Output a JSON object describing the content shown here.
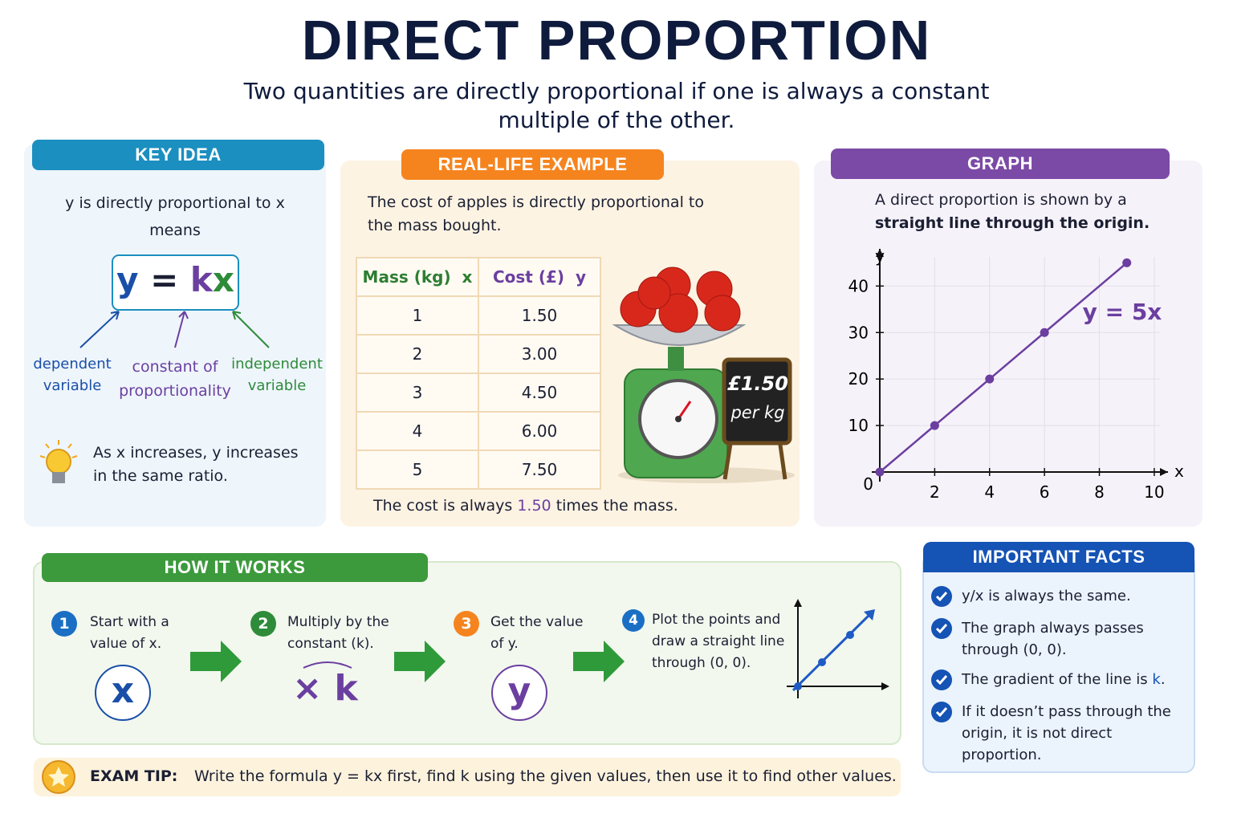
{
  "header": {
    "title": "DIRECT PROPORTION",
    "subtitle": "Two quantities are directly proportional if one is always a constant multiple of the other."
  },
  "key_idea": {
    "heading": "KEY IDEA",
    "intro": "y is directly proportional to x means",
    "formula": [
      "y",
      " = ",
      "k",
      "x"
    ],
    "labels": [
      "dependent variable",
      "constant of proportionality",
      "independent variable"
    ],
    "note": "As x increases, y increases in the same ratio."
  },
  "example": {
    "heading": "REAL-LIFE EXAMPLE",
    "text": "The cost of apples is directly proportional to the mass bought.",
    "table": {
      "columns": [
        "Mass (kg)  x",
        "Cost (£)  y"
      ],
      "rows": [
        [
          "1",
          "1.50"
        ],
        [
          "2",
          "3.00"
        ],
        [
          "3",
          "4.50"
        ],
        [
          "4",
          "6.00"
        ],
        [
          "5",
          "7.50"
        ]
      ]
    },
    "sign": [
      "£1.50",
      "per kg"
    ],
    "conclusion": [
      "The cost is always ",
      "1.50",
      " times the mass."
    ]
  },
  "graph_panel": {
    "heading": "GRAPH",
    "text": [
      "A direct proportion is shown by a",
      "straight line through the origin."
    ],
    "graph": {
      "type": "line",
      "x": [
        0,
        2,
        4,
        6,
        9
      ],
      "values": [
        0,
        10,
        20,
        30,
        45
      ],
      "xlim": [
        0,
        10.5
      ],
      "ylim": [
        0,
        48
      ],
      "xticks": [
        2,
        4,
        6,
        8,
        10
      ],
      "yticks": [
        10,
        20,
        30,
        40
      ],
      "x_label": "x",
      "y_label": "y",
      "origin_label": "0",
      "line_label": "y = 5x",
      "color": "#6b3fa0",
      "grid": true
    }
  },
  "how_it_works": {
    "heading": "HOW IT WORKS",
    "steps": [
      {
        "number": "1",
        "text": "Start with a value of x.",
        "symbol": "x"
      },
      {
        "number": "2",
        "text": "Multiply by the constant (k).",
        "symbol": "× k"
      },
      {
        "number": "3",
        "text": "Get the value of y.",
        "symbol": "y"
      },
      {
        "number": "4",
        "text": "Plot the points and draw a straight line through (0, 0)."
      }
    ]
  },
  "exam_tip": {
    "label": "EXAM TIP:",
    "text": "Write the formula y = kx first, find k using the given values, then use it to find other values."
  },
  "facts": {
    "heading": "IMPORTANT FACTS",
    "items": [
      [
        "y/x is always the same."
      ],
      [
        "The graph always passes through (0, 0)."
      ],
      [
        "The gradient of the line is ",
        "k",
        "."
      ],
      [
        "If it doesn’t pass through the origin, it is not direct proportion."
      ]
    ]
  }
}
